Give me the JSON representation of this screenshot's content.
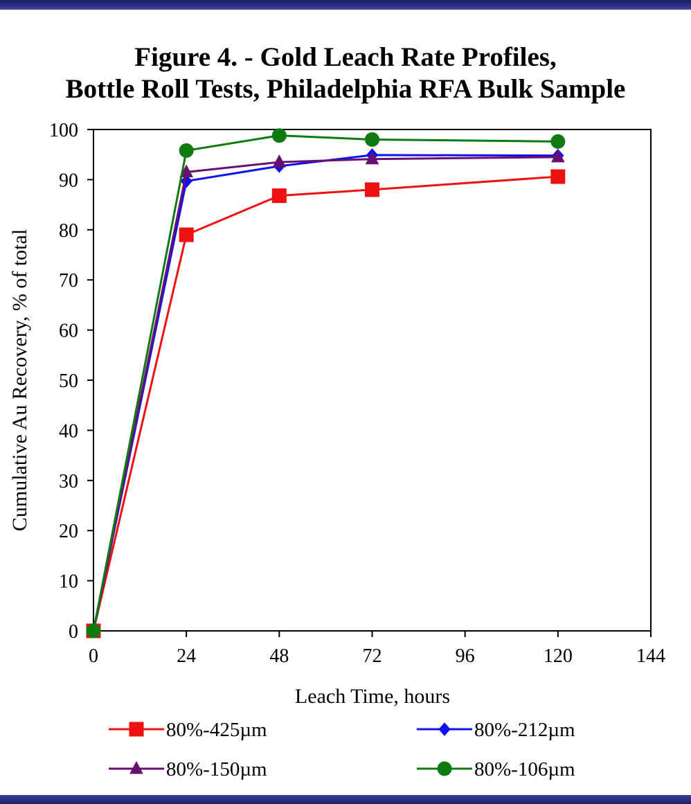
{
  "chart_data": {
    "type": "line",
    "title_lines": [
      "Figure 4. - Gold Leach Rate Profiles,",
      "Bottle Roll Tests, Philadelphia RFA Bulk Sample"
    ],
    "xlabel": "Leach Time, hours",
    "ylabel": "Cumulative Au Recovery, % of total",
    "xlim": [
      0,
      144
    ],
    "ylim": [
      0,
      100
    ],
    "xticks": [
      0,
      24,
      48,
      72,
      96,
      120,
      144
    ],
    "yticks": [
      0,
      10,
      20,
      30,
      40,
      50,
      60,
      70,
      80,
      90,
      100
    ],
    "grid": false,
    "legend_position": "bottom",
    "series": [
      {
        "name": "80%-425µm",
        "color": "#ee1111",
        "marker": "square",
        "points": [
          [
            0,
            0
          ],
          [
            24,
            79
          ],
          [
            48,
            86.8
          ],
          [
            72,
            88
          ],
          [
            120,
            90.6
          ]
        ]
      },
      {
        "name": "80%-212µm",
        "color": "#1111ee",
        "marker": "diamond",
        "points": [
          [
            0,
            0
          ],
          [
            24,
            89.7
          ],
          [
            48,
            92.7
          ],
          [
            72,
            94.9
          ],
          [
            120,
            94.8
          ]
        ]
      },
      {
        "name": "80%-150µm",
        "color": "#6a0f72",
        "marker": "triangle",
        "points": [
          [
            0,
            0
          ],
          [
            24,
            91.5
          ],
          [
            48,
            93.5
          ],
          [
            72,
            94.1
          ],
          [
            120,
            94.5
          ]
        ]
      },
      {
        "name": "80%-106µm",
        "color": "#0e7a12",
        "marker": "circle",
        "points": [
          [
            0,
            0
          ],
          [
            24,
            95.8
          ],
          [
            48,
            98.8
          ],
          [
            72,
            98
          ],
          [
            120,
            97.6
          ]
        ]
      }
    ]
  }
}
